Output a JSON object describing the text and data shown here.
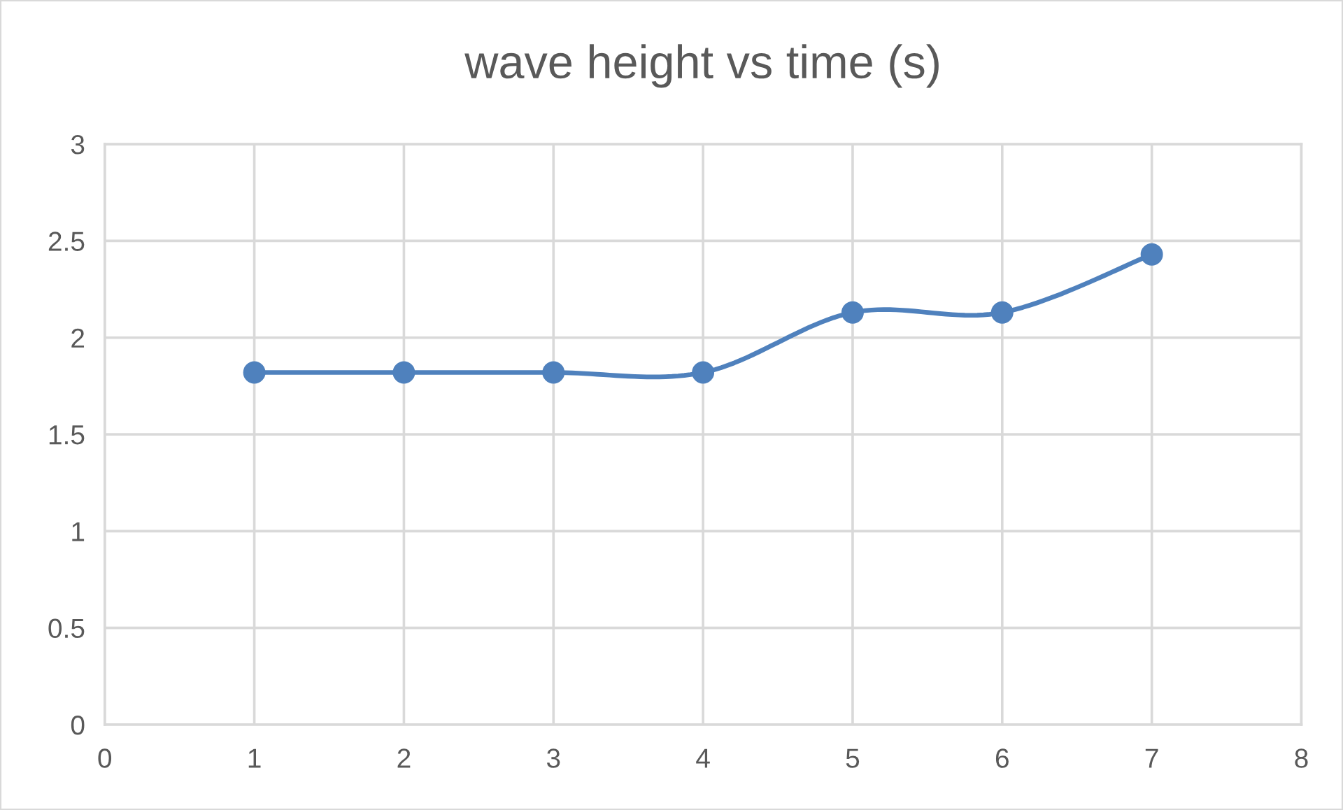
{
  "chart_data": {
    "type": "line",
    "title": "wave height vs time (s)",
    "x": [
      1,
      2,
      3,
      4,
      5,
      6,
      7
    ],
    "series": [
      {
        "color": "#4f81bd",
        "values": [
          1.82,
          1.82,
          1.82,
          1.82,
          2.13,
          2.13,
          2.43
        ]
      }
    ],
    "xlim": [
      0,
      8
    ],
    "xticks": [
      0,
      1,
      2,
      3,
      4,
      5,
      6,
      7,
      8
    ],
    "ylim": [
      0,
      3
    ],
    "yticks": [
      0,
      0.5,
      1,
      1.5,
      2,
      2.5,
      3
    ],
    "grid": true,
    "marker": "circle",
    "line_style": "solid"
  }
}
